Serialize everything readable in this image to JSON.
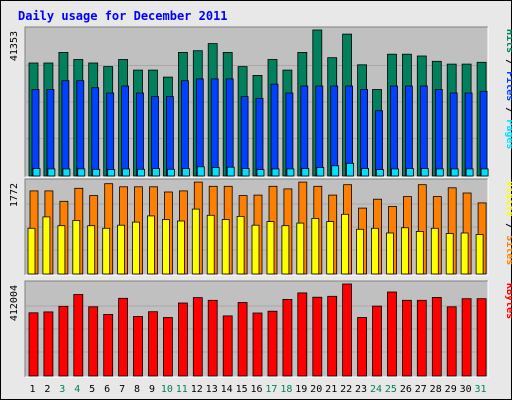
{
  "chart_data": {
    "type": "bar",
    "title": "Daily usage for December 2011",
    "colors": {
      "title": "#0000ff",
      "hits": "#00805c",
      "files": "#0040ff",
      "pages": "#00e0ff",
      "visits": "#ffff00",
      "sites": "#ff8000",
      "kbytes": "#ff0000",
      "panel_bg": "#c0c0c0",
      "frame_bg": "#e8e8e8",
      "weekend_label": "#00805c",
      "weekday_label": "#000000"
    },
    "categories": [
      "1",
      "2",
      "3",
      "4",
      "5",
      "6",
      "7",
      "8",
      "9",
      "10",
      "11",
      "12",
      "13",
      "14",
      "15",
      "16",
      "17",
      "18",
      "19",
      "20",
      "21",
      "22",
      "23",
      "24",
      "25",
      "26",
      "27",
      "28",
      "29",
      "30",
      "31"
    ],
    "weekend_days": [
      "3",
      "4",
      "10",
      "11",
      "17",
      "18",
      "24",
      "25",
      "31"
    ],
    "grid": true,
    "panels": [
      {
        "id": "hits-files-pages",
        "ylabel_parts": [
          {
            "text": "Pages",
            "series": "pages"
          },
          {
            "text": " / ",
            "series": null
          },
          {
            "text": "Files",
            "series": "files"
          },
          {
            "text": " / ",
            "series": null
          },
          {
            "text": "Hits",
            "series": "hits"
          }
        ],
        "max_label": "41353",
        "ylim": [
          0,
          41353
        ],
        "series": [
          {
            "name": "Hits",
            "key": "hits",
            "values": [
              32000,
              32000,
              35000,
              33000,
              32000,
              31000,
              33000,
              30000,
              30000,
              28000,
              35000,
              35500,
              37500,
              35000,
              31000,
              28500,
              33000,
              30000,
              35000,
              41353,
              33500,
              40200,
              31500,
              24500,
              34500,
              34500,
              34000,
              32500,
              31700,
              31700,
              32200
            ]
          },
          {
            "name": "Files",
            "key": "files",
            "values": [
              24500,
              24500,
              27000,
              27000,
              25000,
              23500,
              25500,
              23500,
              22500,
              22500,
              27000,
              27500,
              27500,
              27500,
              22500,
              22000,
              26000,
              23500,
              25500,
              25500,
              25500,
              25500,
              24500,
              18500,
              25500,
              25500,
              25500,
              24500,
              23500,
              23500,
              24000
            ]
          },
          {
            "name": "Pages",
            "key": "pages",
            "values": [
              2100,
              2000,
              2000,
              2000,
              1900,
              1800,
              2000,
              1900,
              2100,
              1900,
              2100,
              2600,
              2400,
              2500,
              2100,
              1800,
              2000,
              2000,
              2100,
              2400,
              2900,
              3600,
              2100,
              1800,
              2000,
              2100,
              2100,
              2000,
              2000,
              2000,
              2000
            ]
          }
        ]
      },
      {
        "id": "visits-sites",
        "ylabel_parts": [
          {
            "text": "Sites",
            "series": "sites"
          },
          {
            "text": " / ",
            "series": null
          },
          {
            "text": "Visits",
            "series": "visits"
          }
        ],
        "max_label": "1772",
        "ylim": [
          0,
          1772
        ],
        "series": [
          {
            "name": "Sites",
            "key": "sites",
            "values": [
              1600,
              1600,
              1400,
              1650,
              1510,
              1740,
              1680,
              1680,
              1680,
              1580,
              1600,
              1770,
              1690,
              1690,
              1510,
              1520,
              1690,
              1640,
              1770,
              1690,
              1520,
              1720,
              1270,
              1440,
              1300,
              1490,
              1720,
              1490,
              1660,
              1560,
              1370
            ]
          },
          {
            "name": "Visits",
            "key": "visits",
            "values": [
              880,
              1100,
              930,
              1030,
              930,
              880,
              940,
              1000,
              1120,
              1050,
              1020,
              1250,
              1130,
              1050,
              1110,
              940,
              1010,
              930,
              980,
              1070,
              1010,
              1150,
              860,
              880,
              790,
              890,
              820,
              880,
              780,
              790,
              760
            ]
          }
        ]
      },
      {
        "id": "kbytes",
        "ylabel_parts": [
          {
            "text": "KBytes",
            "series": "kbytes"
          }
        ],
        "max_label": "412004",
        "ylim": [
          0,
          412004
        ],
        "series": [
          {
            "name": "KBytes",
            "key": "kbytes",
            "values": [
              283000,
              287000,
              312000,
              365000,
              310000,
              276000,
              348000,
              267000,
              288000,
              262000,
              327000,
              351000,
              339000,
              269000,
              329000,
              282000,
              290000,
              343000,
              372000,
              353000,
              357000,
              412004,
              262000,
              313000,
              376000,
              339000,
              339000,
              352000,
              310000,
              346000,
              346000
            ]
          }
        ]
      }
    ]
  }
}
